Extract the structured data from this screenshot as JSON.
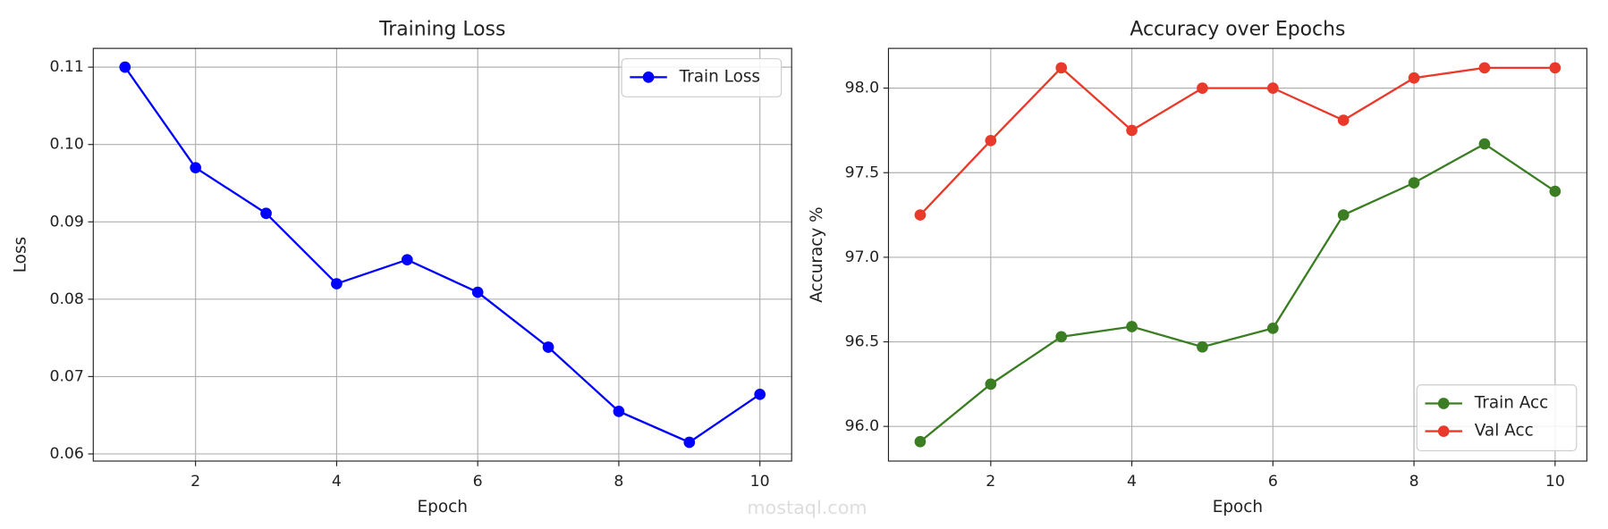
{
  "chart_data": [
    {
      "type": "line",
      "title": "Training Loss",
      "x_label": "Epoch",
      "y_label": "Loss",
      "x": [
        1,
        2,
        3,
        4,
        5,
        6,
        7,
        8,
        9,
        10
      ],
      "series": [
        {
          "name": "Train Loss",
          "color": "#0000ff",
          "values": [
            0.11,
            0.097,
            0.0911,
            0.082,
            0.0851,
            0.0809,
            0.0738,
            0.0655,
            0.0615,
            0.0677
          ]
        }
      ],
      "xlim": [
        0.55,
        10.45
      ],
      "xticks": [
        2,
        4,
        6,
        8,
        10
      ],
      "ylim": [
        0.059075,
        0.112425
      ],
      "yticks": [
        0.06,
        0.07,
        0.08,
        0.09,
        {
          "value": 0.1,
          "label": "0.10"
        },
        0.11
      ],
      "grid": true,
      "legend": "upper-right"
    },
    {
      "type": "line",
      "title": "Accuracy over Epochs",
      "x_label": "Epoch",
      "y_label": "Accuracy %",
      "x": [
        1,
        2,
        3,
        4,
        5,
        6,
        7,
        8,
        9,
        10
      ],
      "series": [
        {
          "name": "Train Acc",
          "color": "#3a7d22",
          "values": [
            95.91,
            96.25,
            96.53,
            96.59,
            96.47,
            96.58,
            97.25,
            97.44,
            97.67,
            97.39
          ]
        },
        {
          "name": "Val Acc",
          "color": "#e8392a",
          "values": [
            97.25,
            97.69,
            98.12,
            97.75,
            98.0,
            98.0,
            97.81,
            98.06,
            98.12,
            98.12
          ]
        }
      ],
      "xlim": [
        0.55,
        10.45
      ],
      "xticks": [
        2,
        4,
        6,
        8,
        10
      ],
      "ylim": [
        95.795,
        98.235
      ],
      "yticks": [
        {
          "value": 96,
          "label": "96.0"
        },
        96.5,
        {
          "value": 97,
          "label": "97.0"
        },
        97.5,
        {
          "value": 98,
          "label": "98.0"
        }
      ],
      "grid": true,
      "legend": "lower-right"
    }
  ],
  "watermark": "mostaql.com"
}
